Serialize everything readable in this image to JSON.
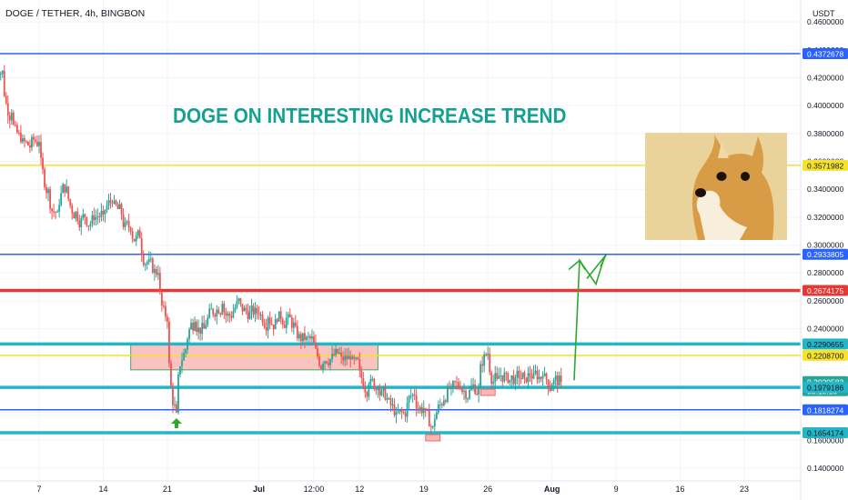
{
  "header": {
    "symbol": "DOGE / TETHER, 4h, BINGBON",
    "currency": "USDT"
  },
  "annotation": {
    "headline": "DOGE ON INTERESTING INCREASE TREND",
    "image_alt": "doge-meme"
  },
  "colors": {
    "background": "#ffffff",
    "grid": "#f0f3fa",
    "up": "#26a69a",
    "down": "#ef5350",
    "blue_line": "#2962ff",
    "yellow_line": "#f7e22a",
    "red_line": "#e53935",
    "teal_line": "#24b5c7",
    "headline": "#14a191",
    "arrow": "#2ea82e",
    "zone_fill": "#f7b9b6",
    "zone_stroke": "#3fae5a"
  },
  "chart_data": {
    "type": "candlestick",
    "title": "DOGE / TETHER, 4h, BINGBON",
    "ylabel": "USDT",
    "ylim": [
      0.13,
      0.47
    ],
    "y_ticks": [
      "0.4600000",
      "0.4400000",
      "0.4200000",
      "0.4000000",
      "0.3800000",
      "0.3600000",
      "0.3400000",
      "0.3200000",
      "0.3000000",
      "0.2800000",
      "0.2600000",
      "0.2400000",
      "0.2200000",
      "0.2000000",
      "0.1800000",
      "0.1600000",
      "0.1400000"
    ],
    "x_ticks": [
      "7",
      "14",
      "21",
      "Jul",
      "12:00",
      "12",
      "19",
      "26",
      "Aug",
      "9",
      "16",
      "23"
    ],
    "grid": true,
    "price_labels": [
      {
        "value": "0.4372678",
        "color": "#2962ff",
        "text_color": "#ffffff"
      },
      {
        "value": "0.3571982",
        "color": "#f7e22a",
        "text_color": "#131722"
      },
      {
        "value": "0.2933805",
        "color": "#2962ff",
        "text_color": "#ffffff"
      },
      {
        "value": "0.2674175",
        "color": "#e53935",
        "text_color": "#ffffff"
      },
      {
        "value": "0.2290655",
        "color": "#24b5c7",
        "text_color": "#131722"
      },
      {
        "value": "0.2208700",
        "color": "#f7e22a",
        "text_color": "#131722"
      },
      {
        "value": "0.2020583",
        "color": "#26a69a",
        "text_color": "#ffffff",
        "subtext": "03:18:15"
      },
      {
        "value": "0.1979186",
        "color": "#24b5c7",
        "text_color": "#131722"
      },
      {
        "value": "0.1818274",
        "color": "#2962ff",
        "text_color": "#ffffff"
      },
      {
        "value": "0.1654174",
        "color": "#24b5c7",
        "text_color": "#131722"
      }
    ],
    "horizontal_lines": [
      {
        "price": 0.4372678,
        "color": "#2962ff",
        "width": 1.5
      },
      {
        "price": 0.3571982,
        "color": "#f7e22a",
        "width": 1.5
      },
      {
        "price": 0.2933805,
        "color": "#2962ff",
        "width": 1.5
      },
      {
        "price": 0.2674175,
        "color": "#e53935",
        "width": 3.5
      },
      {
        "price": 0.2290655,
        "color": "#24b5c7",
        "width": 3.5
      },
      {
        "price": 0.22087,
        "color": "#f7e22a",
        "width": 1.5
      },
      {
        "price": 0.1979186,
        "color": "#24b5c7",
        "width": 3.5
      },
      {
        "price": 0.1818274,
        "color": "#2962ff",
        "width": 1.5
      },
      {
        "price": 0.1654174,
        "color": "#24b5c7",
        "width": 3.5
      }
    ],
    "zone": {
      "x_start": "Jun 17",
      "x_end": "Jul 14",
      "price_high": 0.229,
      "price_low": 0.2105
    },
    "series": [
      {
        "x": "Jun 3",
        "close": 0.425
      },
      {
        "x": "Jun 4",
        "close": 0.395
      },
      {
        "x": "Jun 5",
        "close": 0.374
      },
      {
        "x": "Jun 6",
        "close": 0.37
      },
      {
        "x": "Jun 7",
        "close": 0.374
      },
      {
        "x": "Jun 8",
        "close": 0.34
      },
      {
        "x": "Jun 9",
        "close": 0.324
      },
      {
        "x": "Jun 10",
        "close": 0.342
      },
      {
        "x": "Jun 11",
        "close": 0.324
      },
      {
        "x": "Jun 12",
        "close": 0.32
      },
      {
        "x": "Jun 13",
        "close": 0.318
      },
      {
        "x": "Jun 14",
        "close": 0.322
      },
      {
        "x": "Jun 15",
        "close": 0.33
      },
      {
        "x": "Jun 16",
        "close": 0.322
      },
      {
        "x": "Jun 17",
        "close": 0.31
      },
      {
        "x": "Jun 18",
        "close": 0.305
      },
      {
        "x": "Jun 19",
        "close": 0.29
      },
      {
        "x": "Jun 20",
        "close": 0.28
      },
      {
        "x": "Jun 21",
        "close": 0.245
      },
      {
        "x": "Jun 22",
        "close": 0.18
      },
      {
        "x": "Jun 23",
        "close": 0.225
      },
      {
        "x": "Jun 24",
        "close": 0.245
      },
      {
        "x": "Jun 25",
        "close": 0.24
      },
      {
        "x": "Jun 26",
        "close": 0.25
      },
      {
        "x": "Jun 27",
        "close": 0.258
      },
      {
        "x": "Jun 28",
        "close": 0.248
      },
      {
        "x": "Jun 29",
        "close": 0.258
      },
      {
        "x": "Jun 30",
        "close": 0.252
      },
      {
        "x": "Jul 1",
        "close": 0.25
      },
      {
        "x": "Jul 2",
        "close": 0.248
      },
      {
        "x": "Jul 3",
        "close": 0.245
      },
      {
        "x": "Jul 4",
        "close": 0.248
      },
      {
        "x": "Jul 5",
        "close": 0.242
      },
      {
        "x": "Jul 6",
        "close": 0.232
      },
      {
        "x": "Jul 7",
        "close": 0.23
      },
      {
        "x": "Jul 8",
        "close": 0.215
      },
      {
        "x": "Jul 9",
        "close": 0.222
      },
      {
        "x": "Jul 10",
        "close": 0.22
      },
      {
        "x": "Jul 11",
        "close": 0.218
      },
      {
        "x": "Jul 12",
        "close": 0.21
      },
      {
        "x": "Jul 13",
        "close": 0.2
      },
      {
        "x": "Jul 14",
        "close": 0.198
      },
      {
        "x": "Jul 15",
        "close": 0.19
      },
      {
        "x": "Jul 16",
        "close": 0.18
      },
      {
        "x": "Jul 17",
        "close": 0.177
      },
      {
        "x": "Jul 18",
        "close": 0.192
      },
      {
        "x": "Jul 19",
        "close": 0.183
      },
      {
        "x": "Jul 20",
        "close": 0.17
      },
      {
        "x": "Jul 21",
        "close": 0.185
      },
      {
        "x": "Jul 22",
        "close": 0.198
      },
      {
        "x": "Jul 23",
        "close": 0.197
      },
      {
        "x": "Jul 24",
        "close": 0.196
      },
      {
        "x": "Jul 25",
        "close": 0.198
      },
      {
        "x": "Jul 26",
        "close": 0.222
      },
      {
        "x": "Jul 27",
        "close": 0.204
      },
      {
        "x": "Jul 28",
        "close": 0.208
      },
      {
        "x": "Jul 29",
        "close": 0.205
      },
      {
        "x": "Jul 30",
        "close": 0.205
      },
      {
        "x": "Jul 31",
        "close": 0.208
      },
      {
        "x": "Aug 1",
        "close": 0.206
      },
      {
        "x": "Aug 2",
        "close": 0.2
      },
      {
        "x": "Aug 3",
        "close": 0.202
      }
    ],
    "projection": [
      {
        "x": "Aug 3",
        "price": 0.203
      },
      {
        "x": "Aug 4",
        "price": 0.289
      },
      {
        "x": "Aug 5",
        "price": 0.272
      },
      {
        "x": "Aug 6",
        "price": 0.291
      }
    ],
    "markers": [
      {
        "x": "Jun 22",
        "type": "up-arrow"
      },
      {
        "x": "Jul 20",
        "type": "label-box"
      },
      {
        "x": "Jul 26",
        "type": "label-box"
      }
    ]
  }
}
